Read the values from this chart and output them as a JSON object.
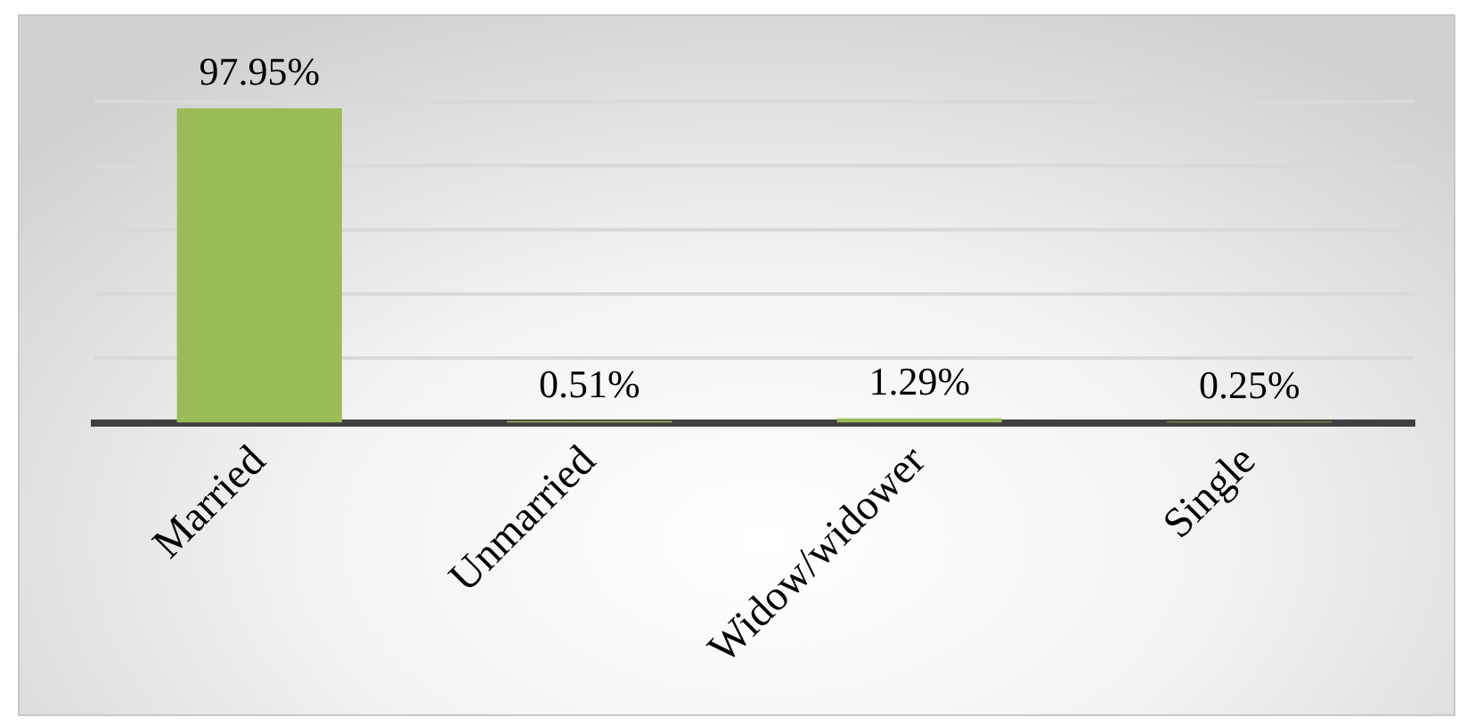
{
  "chart_data": {
    "type": "bar",
    "categories": [
      "Married",
      "Unmarried",
      "Widow/widower",
      "Single"
    ],
    "values": [
      97.95,
      0.51,
      1.29,
      0.25
    ],
    "color": "#9bbb59",
    "value_labels": [
      "97.95%",
      "0.51%",
      "1.29%",
      "0.25%"
    ],
    "yticks": [
      {
        "value": 20,
        "label": null
      },
      {
        "value": 40,
        "label": null
      },
      {
        "value": 60,
        "label": null
      },
      {
        "value": 80,
        "label": null
      },
      {
        "value": 100,
        "label": null
      }
    ],
    "grid": "y",
    "tick_labels": "x",
    "legend": false
  }
}
